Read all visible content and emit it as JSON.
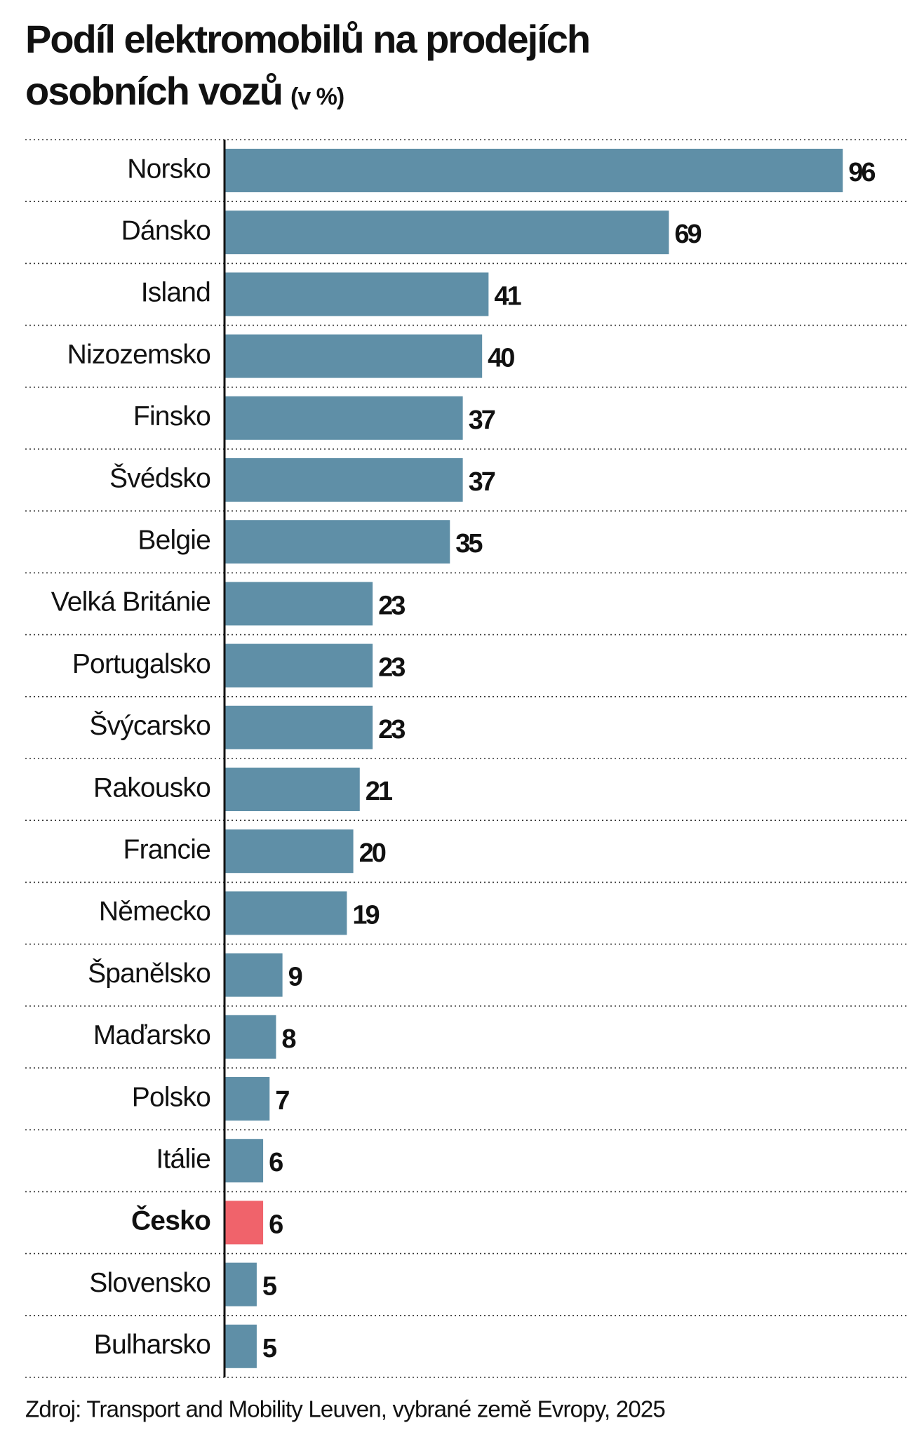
{
  "chart_data": {
    "type": "bar",
    "orientation": "horizontal",
    "title": [
      "Podíl elektromobilů na prodejích",
      "osobních vozů"
    ],
    "subtitle": "(v %)",
    "source": "Zdroj: Transport and Mobility Leuven, vybrané země Evropy, 2025",
    "categories": [
      "Norsko",
      "Dánsko",
      "Island",
      "Nizozemsko",
      "Finsko",
      "Švédsko",
      "Belgie",
      "Velká Británie",
      "Portugalsko",
      "Švýcarsko",
      "Rakousko",
      "Francie",
      "Německo",
      "Španělsko",
      "Maďarsko",
      "Polsko",
      "Itálie",
      "Česko",
      "Slovensko",
      "Bulharsko"
    ],
    "values": [
      96,
      69,
      41,
      40,
      37,
      37,
      35,
      23,
      23,
      23,
      21,
      20,
      19,
      9,
      8,
      7,
      6,
      6,
      5,
      5
    ],
    "color": "#5f8fa7",
    "colors": [
      "#5f8fa7",
      "#5f8fa7",
      "#5f8fa7",
      "#5f8fa7",
      "#5f8fa7",
      "#5f8fa7",
      "#5f8fa7",
      "#5f8fa7",
      "#5f8fa7",
      "#5f8fa7",
      "#5f8fa7",
      "#5f8fa7",
      "#5f8fa7",
      "#5f8fa7",
      "#5f8fa7",
      "#5f8fa7",
      "#5f8fa7",
      "#f0636b",
      "#5f8fa7",
      "#5f8fa7"
    ],
    "xlim": [
      0,
      106
    ]
  }
}
